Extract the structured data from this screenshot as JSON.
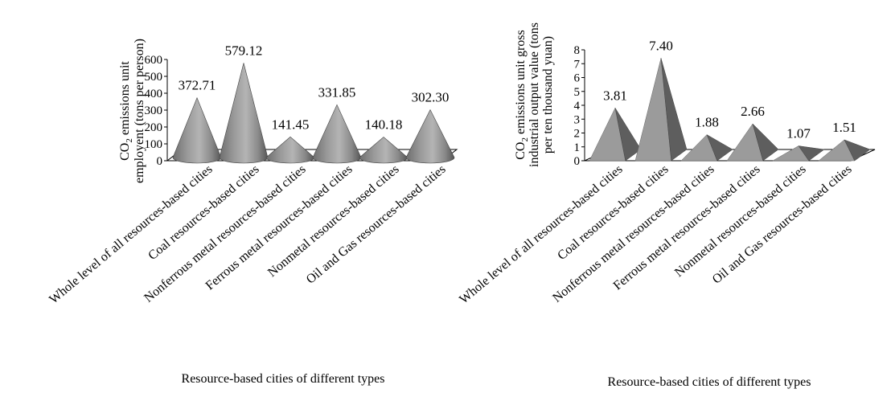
{
  "chart_data": [
    {
      "type": "bar",
      "style": "3d-cone",
      "ylabel_line1": "CO",
      "ylabel_sub": "2",
      "ylabel_line1_rest": " emissions unit",
      "ylabel_line2": "employent (tons per person)",
      "xlabel": "Resource-based cities of different types",
      "ylim": [
        0,
        600
      ],
      "ticks": [
        0,
        100,
        200,
        300,
        400,
        500,
        600
      ],
      "categories": [
        "Whole level of all resources-based cities",
        "Coal resources-based cities",
        "Nonferrous metal resources-based cities",
        "Ferrous metal resources-based cities",
        "Nonmetal resources-based cities",
        "Oil and Gas resources-based cities"
      ],
      "values": [
        372.71,
        579.12,
        141.45,
        331.85,
        140.18,
        302.3
      ],
      "value_labels": [
        "372.71",
        "579.12",
        "141.45",
        "331.85",
        "140.18",
        "302.30"
      ]
    },
    {
      "type": "bar",
      "style": "3d-pyramid",
      "ylabel_line1": "CO",
      "ylabel_sub": "2",
      "ylabel_line1_rest": " emissions unit gross",
      "ylabel_line2": "industrial output value (tons",
      "ylabel_line3": "per ten thousand yuan)",
      "xlabel": "Resource-based cities of different types",
      "ylim": [
        0,
        8
      ],
      "ticks": [
        0,
        1,
        2,
        3,
        4,
        5,
        6,
        7,
        8
      ],
      "categories": [
        "Whole level of all resources-based cities",
        "Coal resources-based cities",
        "Nonferrous metal resources-based cities",
        "Ferrous metal resources-based cities",
        "Nonmetal resources-based cities",
        "Oil and Gas resources-based cities"
      ],
      "values": [
        3.81,
        7.4,
        1.88,
        2.66,
        1.07,
        1.51
      ],
      "value_labels": [
        "3.81",
        "7.40",
        "1.88",
        "2.66",
        "1.07",
        "1.51"
      ]
    }
  ]
}
